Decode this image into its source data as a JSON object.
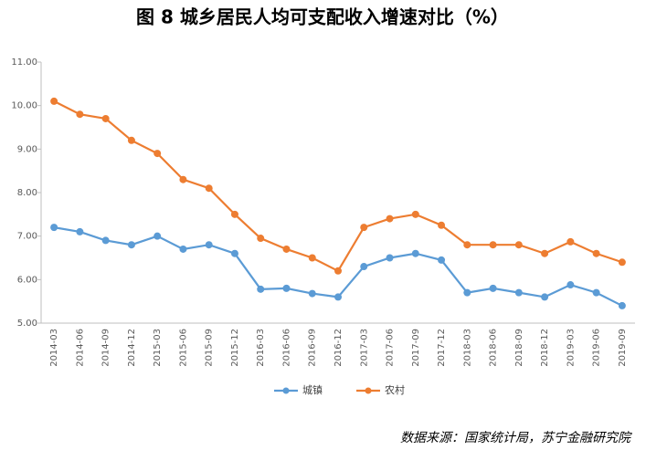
{
  "chart_data": {
    "type": "line",
    "title": "图 8   城乡居民人均可支配收入增速对比（%）",
    "source": "数据来源：国家统计局，苏宁金融研究院",
    "categories": [
      "2014-03",
      "2014-06",
      "2014-09",
      "2014-12",
      "2015-03",
      "2015-06",
      "2015-09",
      "2015-12",
      "2016-03",
      "2016-06",
      "2016-09",
      "2016-12",
      "2017-03",
      "2017-06",
      "2017-09",
      "2017-12",
      "2018-03",
      "2018-06",
      "2018-09",
      "2018-12",
      "2019-03",
      "2019-06",
      "2019-09"
    ],
    "series": [
      {
        "name": "城镇",
        "color": "#5b9bd5",
        "values": [
          7.2,
          7.1,
          6.9,
          6.8,
          7.0,
          6.7,
          6.8,
          6.6,
          5.78,
          5.8,
          5.68,
          5.6,
          6.3,
          6.5,
          6.6,
          6.45,
          5.7,
          5.8,
          5.7,
          5.6,
          5.88,
          5.7,
          5.4
        ]
      },
      {
        "name": "农村",
        "color": "#ed7d31",
        "values": [
          10.1,
          9.8,
          9.7,
          9.2,
          8.9,
          8.3,
          8.1,
          7.5,
          6.95,
          6.7,
          6.5,
          6.2,
          7.2,
          7.4,
          7.5,
          7.25,
          6.8,
          6.8,
          6.8,
          6.6,
          6.87,
          6.6,
          6.4
        ]
      }
    ],
    "ylim": [
      5,
      11
    ],
    "yticks": [
      {
        "value": 5,
        "label": "5.00"
      },
      {
        "value": 6,
        "label": "6.00"
      },
      {
        "value": 7,
        "label": "7.00"
      },
      {
        "value": 8,
        "label": "8.00"
      },
      {
        "value": 9,
        "label": "9.00"
      },
      {
        "value": 10,
        "label": "10.00"
      },
      {
        "value": 11,
        "label": "11.00"
      }
    ],
    "legend": "bottom"
  }
}
